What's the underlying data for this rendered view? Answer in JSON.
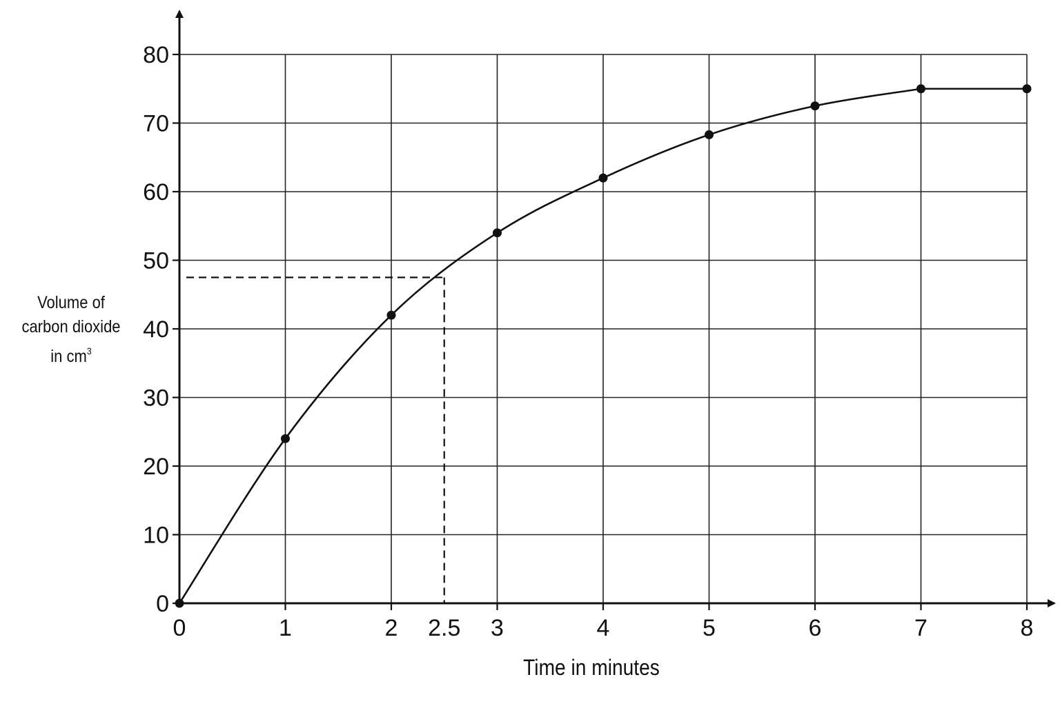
{
  "chart_data": {
    "type": "line",
    "xlabel": "Time in minutes",
    "ylabel": {
      "line1": "Volume of",
      "line2": "carbon dioxide",
      "line3": "in cm",
      "unit_superscript": "3"
    },
    "xlim": [
      0,
      8
    ],
    "ylim": [
      0,
      80
    ],
    "x_ticks": [
      "0",
      "1",
      "2",
      "2.5",
      "3",
      "4",
      "5",
      "6",
      "7",
      "8"
    ],
    "x_tick_values": [
      0,
      1,
      2,
      2.5,
      3,
      4,
      5,
      6,
      7,
      8
    ],
    "y_ticks": [
      "0",
      "10",
      "20",
      "30",
      "40",
      "50",
      "60",
      "70",
      "80"
    ],
    "y_tick_values": [
      0,
      10,
      20,
      30,
      40,
      50,
      60,
      70,
      80
    ],
    "grid": true,
    "series": [
      {
        "x": [
          0,
          1,
          2,
          3,
          4,
          5,
          6,
          7,
          8
        ],
        "values": [
          0,
          24,
          42,
          54,
          62,
          68.3,
          72.5,
          75,
          75
        ]
      }
    ],
    "annotation": {
      "x": 2.5,
      "y": 47.5,
      "style": "dashed"
    },
    "colors": {
      "line": "#111111",
      "grid": "#222222",
      "background": "#ffffff"
    }
  }
}
